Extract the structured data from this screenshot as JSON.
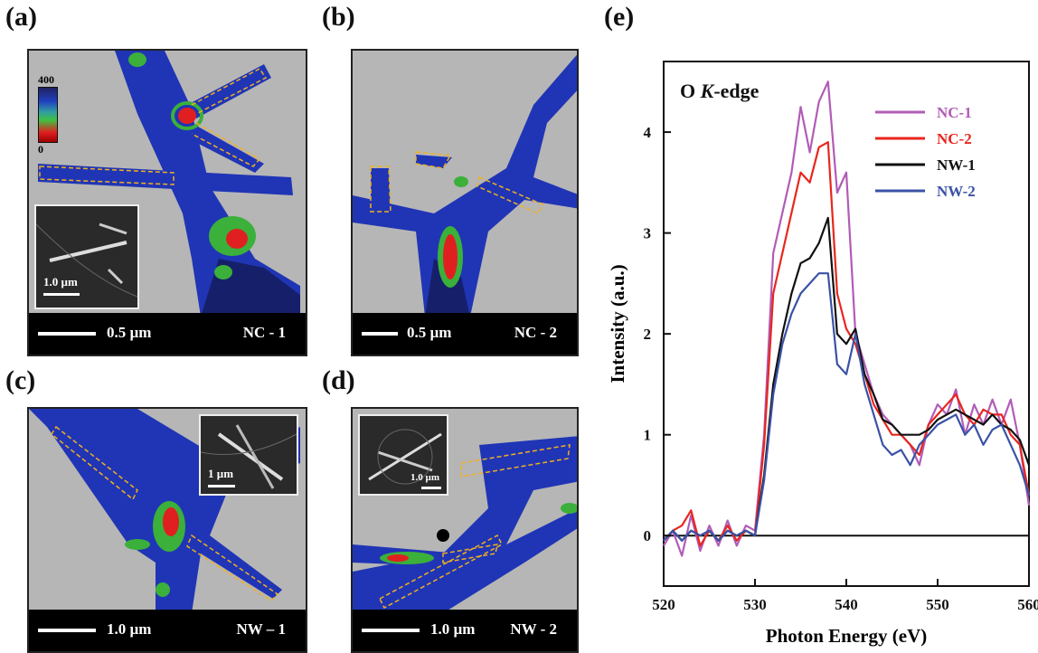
{
  "panels": {
    "a": {
      "label": "(a)",
      "scale": "0.5 µm",
      "sample": "NC - 1",
      "inset_scale": "1.0 µm",
      "cb_max": "400",
      "cb_min": "0"
    },
    "b": {
      "label": "(b)",
      "scale": "0.5 µm",
      "sample": "NC - 2"
    },
    "c": {
      "label": "(c)",
      "scale": "1.0 µm",
      "sample": "NW – 1",
      "inset_scale": "1 µm"
    },
    "d": {
      "label": "(d)",
      "scale": "1.0 µm",
      "sample": "NW - 2",
      "inset_scale": "1.0 µm"
    },
    "e": {
      "label": "(e)"
    }
  },
  "colors": {
    "NC-1": "#b15cb6",
    "NC-2": "#e8261e",
    "NW-1": "#111111",
    "NW-2": "#3a52a6",
    "map_bg": "#b6b6b6",
    "map_dark": "#0a0a40",
    "map_blue": "#2035b5",
    "map_green": "#3bb03b",
    "map_red": "#e02020",
    "outline": "#f0b020"
  },
  "chart_data": {
    "type": "line",
    "title": "",
    "annotation": "O K-edge",
    "annotation_parts": [
      "O ",
      "K",
      "-edge"
    ],
    "xlabel": "Photon Energy (eV)",
    "ylabel": "Intensity (a.u.)",
    "xlim": [
      520,
      560
    ],
    "ylim": [
      -0.5,
      4.7
    ],
    "xticks": [
      520,
      530,
      540,
      550,
      560
    ],
    "yticks": [
      0,
      1,
      2,
      3,
      4
    ],
    "legend_position": "top-right",
    "reference_line": 0,
    "series": [
      {
        "name": "NC-1",
        "color": "#b15cb6",
        "x": [
          520,
          521,
          522,
          523,
          524,
          525,
          526,
          527,
          528,
          529,
          530,
          531,
          532,
          533,
          534,
          535,
          536,
          537,
          538,
          539,
          540,
          541,
          542,
          543,
          544,
          545,
          546,
          547,
          548,
          549,
          550,
          551,
          552,
          553,
          554,
          555,
          556,
          557,
          558,
          559,
          560
        ],
        "y": [
          -0.1,
          0.05,
          -0.2,
          0.2,
          -0.15,
          0.1,
          -0.1,
          0.15,
          -0.1,
          0.1,
          0.05,
          1.0,
          2.8,
          3.2,
          3.6,
          4.25,
          3.8,
          4.3,
          4.5,
          3.4,
          3.6,
          2.0,
          1.7,
          1.4,
          1.2,
          1.1,
          1.0,
          0.9,
          0.7,
          1.1,
          1.3,
          1.2,
          1.45,
          1.0,
          1.3,
          1.1,
          1.35,
          1.1,
          1.35,
          0.9,
          0.3
        ]
      },
      {
        "name": "NC-2",
        "color": "#e8261e",
        "x": [
          520,
          521,
          522,
          523,
          524,
          525,
          526,
          527,
          528,
          529,
          530,
          531,
          532,
          533,
          534,
          535,
          536,
          537,
          538,
          539,
          540,
          541,
          542,
          543,
          544,
          545,
          546,
          547,
          548,
          549,
          550,
          551,
          552,
          553,
          554,
          555,
          556,
          557,
          558,
          559,
          560
        ],
        "y": [
          -0.05,
          0.05,
          0.1,
          0.25,
          -0.1,
          0.05,
          -0.05,
          0.1,
          -0.05,
          0.05,
          0.0,
          0.9,
          2.4,
          2.8,
          3.2,
          3.6,
          3.5,
          3.85,
          3.9,
          2.4,
          2.05,
          1.9,
          1.6,
          1.3,
          1.15,
          1.0,
          1.0,
          0.9,
          0.8,
          1.1,
          1.2,
          1.3,
          1.4,
          1.2,
          1.1,
          1.25,
          1.2,
          1.2,
          1.0,
          0.9,
          0.4
        ]
      },
      {
        "name": "NW-1",
        "color": "#111111",
        "x": [
          520,
          521,
          522,
          523,
          524,
          525,
          526,
          527,
          528,
          529,
          530,
          531,
          532,
          533,
          534,
          535,
          536,
          537,
          538,
          539,
          540,
          541,
          542,
          543,
          544,
          545,
          546,
          547,
          548,
          549,
          550,
          551,
          552,
          553,
          554,
          555,
          556,
          557,
          558,
          559,
          560
        ],
        "y": [
          -0.05,
          0.05,
          -0.05,
          0.05,
          0.0,
          0.05,
          -0.05,
          0.05,
          0.0,
          0.05,
          0.0,
          0.6,
          1.5,
          2.0,
          2.4,
          2.7,
          2.75,
          2.9,
          3.15,
          2.0,
          1.9,
          2.05,
          1.6,
          1.4,
          1.15,
          1.1,
          1.0,
          1.0,
          1.0,
          1.05,
          1.15,
          1.2,
          1.25,
          1.2,
          1.15,
          1.1,
          1.2,
          1.1,
          1.05,
          0.95,
          0.7
        ]
      },
      {
        "name": "NW-2",
        "color": "#3a52a6",
        "x": [
          520,
          521,
          522,
          523,
          524,
          525,
          526,
          527,
          528,
          529,
          530,
          531,
          532,
          533,
          534,
          535,
          536,
          537,
          538,
          539,
          540,
          541,
          542,
          543,
          544,
          545,
          546,
          547,
          548,
          549,
          550,
          551,
          552,
          553,
          554,
          555,
          556,
          557,
          558,
          559,
          560
        ],
        "y": [
          -0.05,
          0.05,
          -0.05,
          0.05,
          0.0,
          0.05,
          -0.05,
          0.05,
          0.0,
          0.05,
          0.0,
          0.55,
          1.4,
          1.9,
          2.2,
          2.4,
          2.5,
          2.6,
          2.6,
          1.7,
          1.6,
          2.0,
          1.5,
          1.2,
          0.9,
          0.8,
          0.85,
          0.7,
          0.9,
          1.0,
          1.1,
          1.15,
          1.2,
          1.0,
          1.1,
          0.9,
          1.05,
          1.1,
          0.9,
          0.7,
          0.4
        ]
      }
    ]
  }
}
